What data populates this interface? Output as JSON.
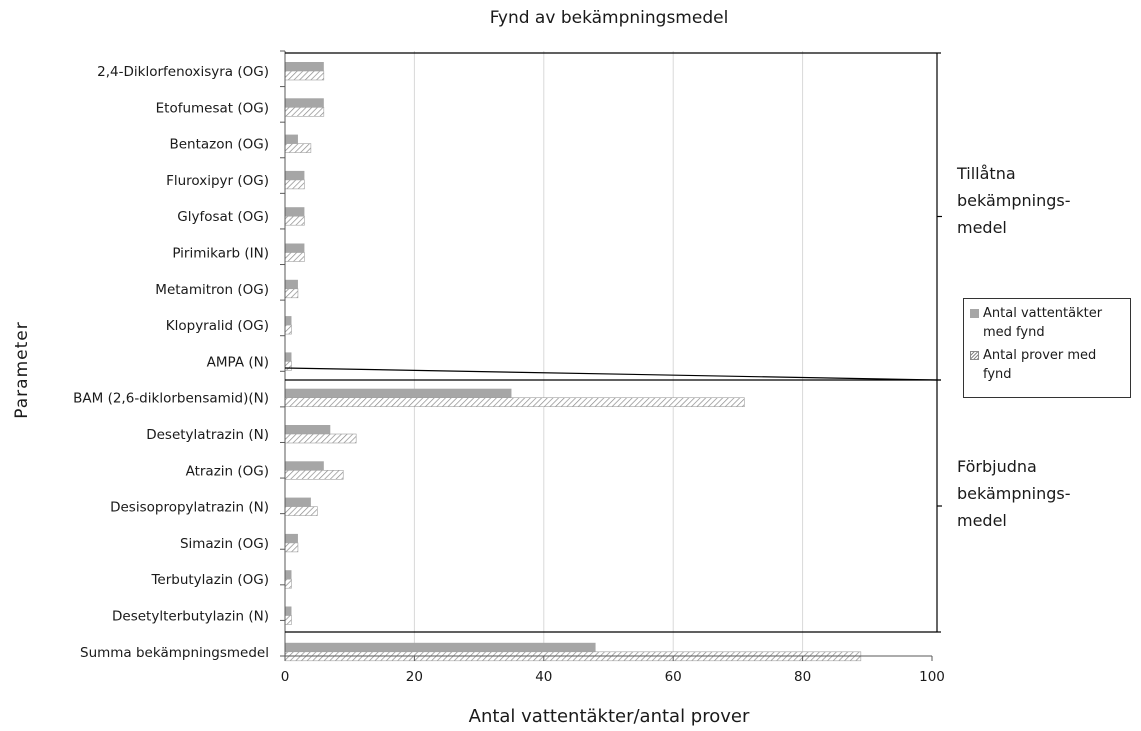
{
  "chart_data": {
    "type": "bar",
    "orientation": "horizontal",
    "title": "Fynd av bekämpningsmedel",
    "xlabel": "Antal vattentäkter/antal prover",
    "ylabel": "Parameter",
    "xlim": [
      0,
      100
    ],
    "xticks": [
      "0",
      "20",
      "40",
      "60",
      "80",
      "100"
    ],
    "grid": "vertical",
    "legend_position": "right",
    "categories": [
      "2,4-Diklorfenoxisyra (OG)",
      "Etofumesat (OG)",
      "Bentazon (OG)",
      "Fluroxipyr (OG)",
      "Glyfosat (OG)",
      "Pirimikarb (IN)",
      "Metamitron (OG)",
      "Klopyralid (OG)",
      "AMPA (N)",
      "BAM (2,6-diklorbensamid)(N)",
      "Desetylatrazin (N)",
      "Atrazin (OG)",
      "Desisopropylatrazin (N)",
      "Simazin (OG)",
      "Terbutylazin (OG)",
      "Desetylterbutylazin (N)",
      "Summa bekämpningsmedel"
    ],
    "series": [
      {
        "name": "Antal vattentäkter med fynd",
        "style": "solid",
        "color": "#a6a6a6",
        "values": [
          6,
          6,
          2,
          3,
          3,
          3,
          2,
          1,
          1,
          35,
          7,
          6,
          4,
          2,
          1,
          1,
          48
        ]
      },
      {
        "name": "Antal prover med fynd",
        "style": "hatched",
        "color": "#8a8a8a",
        "values": [
          6,
          6,
          4,
          3,
          3,
          3,
          2,
          1,
          1,
          71,
          11,
          9,
          5,
          2,
          1,
          1,
          89
        ]
      }
    ],
    "groups": [
      {
        "lines": [
          "Tillåtna",
          "bekämpnings-",
          "medel"
        ],
        "from": 0,
        "to": 8
      },
      {
        "lines": [
          "Förbjudna",
          "bekämpnings-",
          "medel"
        ],
        "from": 9,
        "to": 16
      }
    ]
  }
}
